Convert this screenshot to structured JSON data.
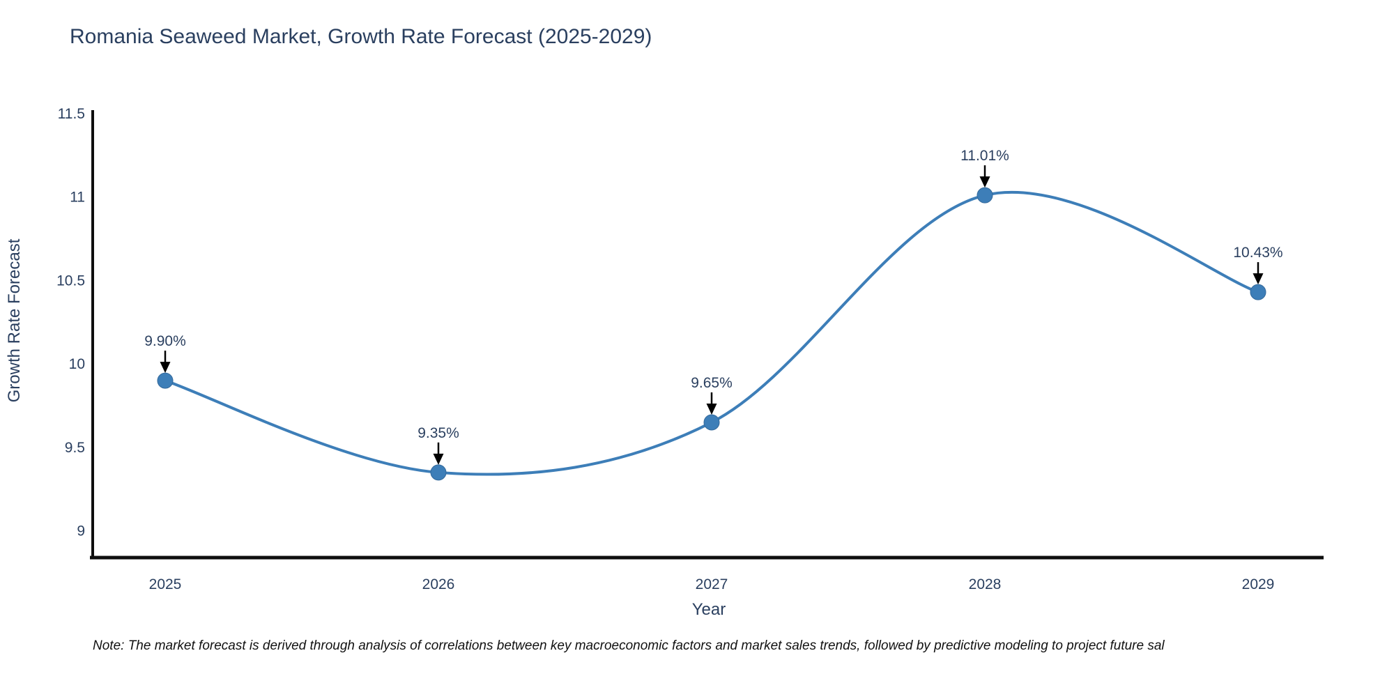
{
  "figure": {
    "title": "Romania Seaweed Market, Growth Rate Forecast (2025-2029)",
    "note": "Note: The market forecast is derived through analysis of correlations between key macroeconomic factors and market sales trends, followed by predictive modeling to project future sal"
  },
  "colors": {
    "accent": "#3d7eb8",
    "marker_edge": "#34699b",
    "text": "#2a3f5f",
    "axis": "#0e0e0e",
    "annotation_arrow": "#000000",
    "note_text": "#111111"
  },
  "chart_data": {
    "type": "line",
    "line_shape": "spline",
    "title": "Romania Seaweed Market, Growth Rate Forecast (2025-2029)",
    "xlabel": "Year",
    "ylabel": "Growth Rate Forecast",
    "x": [
      2025,
      2026,
      2027,
      2028,
      2029
    ],
    "series": [
      {
        "name": "Growth Rate Forecast",
        "values": [
          9.9,
          9.35,
          9.65,
          11.01,
          10.43
        ]
      }
    ],
    "point_labels": [
      "9.90%",
      "9.35%",
      "9.65%",
      "11.01%",
      "10.43%"
    ],
    "xticks": [
      "2025",
      "2026",
      "2027",
      "2028",
      "2029"
    ],
    "yticks": [
      9,
      9.5,
      10,
      10.5,
      11,
      11.5
    ],
    "ytick_labels": [
      "9",
      "9.5",
      "10",
      "10.5",
      "11",
      "11.5"
    ],
    "ylim": [
      8.84,
      11.52
    ],
    "grid": false,
    "legend_position": "none",
    "marker": "circle",
    "annotations": "value-above-with-arrow"
  }
}
